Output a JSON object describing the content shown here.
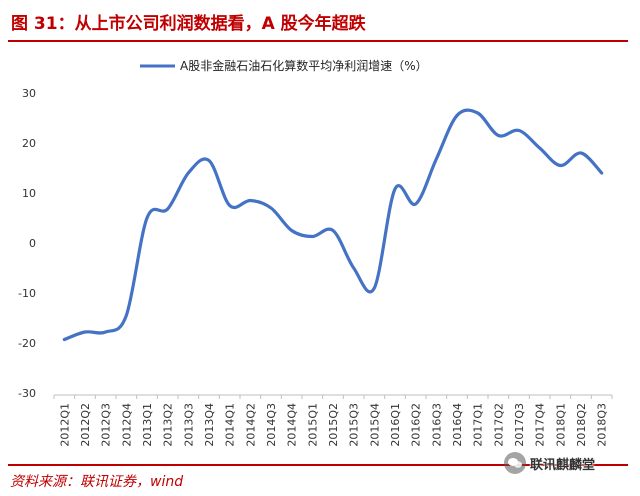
{
  "figure_title": "图 31：从上市公司利润数据看，A 股今年超跌",
  "source_note": "资料来源：联讯证券，wind",
  "watermark": "联讯麒麟堂",
  "colors": {
    "accent": "#c00000",
    "series": "#4472c4"
  },
  "chart_data": {
    "type": "line",
    "title": "",
    "xlabel": "",
    "ylabel": "",
    "ylim": [
      -30,
      30
    ],
    "yticks": [
      -30,
      -20,
      -10,
      0,
      10,
      20,
      30
    ],
    "grid": false,
    "legend_position": "top-center",
    "categories": [
      "2012Q1",
      "2012Q2",
      "2012Q3",
      "2012Q4",
      "2013Q1",
      "2013Q2",
      "2013Q3",
      "2013Q4",
      "2014Q1",
      "2014Q2",
      "2014Q3",
      "2014Q4",
      "2015Q1",
      "2015Q2",
      "2015Q3",
      "2015Q4",
      "2016Q1",
      "2016Q2",
      "2016Q3",
      "2016Q4",
      "2017Q1",
      "2017Q2",
      "2017Q3",
      "2017Q4",
      "2018Q1",
      "2018Q2",
      "2018Q3"
    ],
    "series": [
      {
        "name": "A股非金融石油石化算数平均净利润增速（%）",
        "values": [
          -19.3,
          -17.8,
          -17.8,
          -14.5,
          5.0,
          6.8,
          14.0,
          16.5,
          7.5,
          8.5,
          7.0,
          2.5,
          1.3,
          2.5,
          -5.0,
          -9.0,
          10.8,
          7.8,
          16.8,
          25.5,
          26.0,
          21.5,
          22.5,
          19.0,
          15.5,
          18.0,
          14.0
        ]
      }
    ]
  }
}
